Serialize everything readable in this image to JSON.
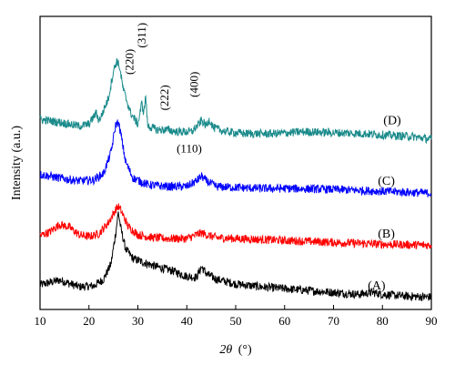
{
  "chart_data": {
    "type": "line",
    "xlabel_symbol": "2θ",
    "xlabel_unit": "(°)",
    "ylabel": "Intensity (a.u.)",
    "xlim": [
      10,
      90
    ],
    "xticks": [
      10,
      20,
      30,
      40,
      50,
      60,
      70,
      80,
      90
    ],
    "yticks_shown": false,
    "grid": false,
    "series": [
      {
        "label": "(A)",
        "color": "#000000",
        "baseline": 0.0,
        "x": [
          10,
          14,
          18,
          21,
          23,
          24.5,
          25.5,
          26,
          26.5,
          27.5,
          29,
          31,
          34,
          37,
          40,
          42,
          43,
          44,
          46,
          50,
          55,
          60,
          65,
          70,
          75,
          78,
          80,
          85,
          90
        ],
        "y": [
          1.6,
          2.1,
          1.4,
          1.5,
          2.2,
          3.8,
          7.2,
          9.3,
          7.6,
          5.4,
          4.4,
          4.0,
          3.5,
          3.1,
          2.5,
          2.4,
          3.5,
          2.8,
          2.2,
          1.7,
          1.4,
          1.2,
          1.0,
          0.8,
          0.6,
          0.8,
          0.6,
          0.4,
          0.3
        ]
      },
      {
        "label": "(B)",
        "color": "#ff0000",
        "baseline": 5.6,
        "x": [
          10,
          12,
          14,
          16,
          18,
          20,
          22,
          24,
          25.5,
          26,
          26.5,
          28,
          30,
          33,
          36,
          40,
          42,
          43,
          44,
          46,
          50,
          55,
          60,
          70,
          80,
          90
        ],
        "y": [
          1.2,
          1.6,
          2.4,
          2.1,
          1.3,
          1.1,
          1.4,
          2.6,
          4.0,
          4.3,
          3.9,
          2.2,
          1.3,
          1.0,
          0.9,
          0.9,
          1.3,
          1.5,
          1.3,
          1.0,
          0.9,
          0.8,
          0.7,
          0.5,
          0.3,
          0.2
        ]
      },
      {
        "label": "(C)",
        "color": "#0000ff",
        "baseline": 11.0,
        "x": [
          10,
          14,
          18,
          21,
          23,
          24.5,
          25.5,
          26,
          26.5,
          27.5,
          29,
          32,
          36,
          40,
          42,
          43,
          44,
          46,
          50,
          55,
          60,
          70,
          80,
          90
        ],
        "y": [
          2.3,
          1.9,
          1.6,
          1.7,
          2.4,
          4.6,
          7.6,
          7.8,
          6.6,
          3.6,
          1.9,
          1.2,
          1.0,
          1.0,
          1.6,
          2.1,
          1.6,
          1.0,
          0.9,
          0.8,
          0.8,
          0.7,
          0.5,
          0.3
        ]
      },
      {
        "label": "(D)",
        "color": "#1a8a8a",
        "baseline": 16.8,
        "x": [
          10,
          14,
          18,
          20,
          21.5,
          22,
          22.5,
          24,
          25,
          25.7,
          26.2,
          27,
          28.5,
          30,
          30.8,
          31.2,
          31.6,
          32,
          34,
          36,
          38,
          41,
          42.5,
          43,
          44,
          44.6,
          45.5,
          48,
          52,
          58,
          64,
          70,
          76,
          82,
          86,
          90
        ],
        "y": [
          2.3,
          2.0,
          1.6,
          1.8,
          3.0,
          2.2,
          2.6,
          4.6,
          7.4,
          8.5,
          8.0,
          5.5,
          3.0,
          1.8,
          4.0,
          3.0,
          4.8,
          1.6,
          1.2,
          1.2,
          1.0,
          1.0,
          1.8,
          2.2,
          1.6,
          2.3,
          1.4,
          1.0,
          0.8,
          0.8,
          1.0,
          0.9,
          0.8,
          0.6,
          0.5,
          0.2
        ]
      }
    ],
    "peak_labels": [
      {
        "text": "(220)",
        "x": 29.1,
        "y": 25.2,
        "rotate": true
      },
      {
        "text": "(311)",
        "x": 31.6,
        "y": 28.0,
        "rotate": true
      },
      {
        "text": "(222)",
        "x": 36.2,
        "y": 21.4,
        "rotate": true
      },
      {
        "text": "(400)",
        "x": 42.3,
        "y": 22.8,
        "rotate": true
      },
      {
        "text": "(110)",
        "x": 40.5,
        "y": 15.6,
        "rotate": false
      }
    ]
  }
}
